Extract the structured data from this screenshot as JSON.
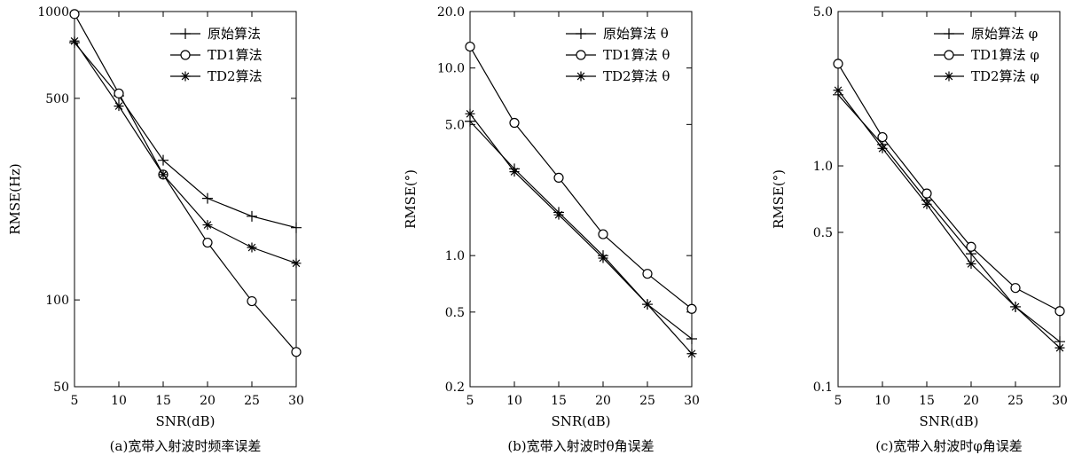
{
  "chart_data": [
    {
      "type": "line",
      "caption": "(a)宽带入射波时频率误差",
      "xlabel": "SNR(dB)",
      "ylabel": "RMSE(Hz)",
      "yscale": "log",
      "xlim": [
        5,
        30
      ],
      "ylim": [
        50,
        1000
      ],
      "xticks": [
        5,
        10,
        15,
        20,
        25,
        30
      ],
      "xtick_labels": [
        "5",
        "10",
        "15",
        "20",
        "25",
        "30"
      ],
      "yticks": [
        50,
        100,
        500,
        1000
      ],
      "ytick_labels": [
        "50",
        "100",
        "500",
        "1000"
      ],
      "legend_position": "top-right",
      "grid": false,
      "x": [
        5,
        10,
        15,
        20,
        25,
        30
      ],
      "series": [
        {
          "name": "原始算法",
          "marker": "plus",
          "values": [
            780,
            510,
            305,
            225,
            195,
            178
          ]
        },
        {
          "name": "TD1算法",
          "marker": "circle",
          "values": [
            980,
            520,
            272,
            158,
            99,
            66
          ]
        },
        {
          "name": "TD2算法",
          "marker": "star",
          "values": [
            790,
            470,
            272,
            182,
            152,
            134
          ]
        }
      ]
    },
    {
      "type": "line",
      "caption": "(b)宽带入射波时θ角误差",
      "xlabel": "SNR(dB)",
      "ylabel": "RMSE(°)",
      "yscale": "log",
      "xlim": [
        5,
        30
      ],
      "ylim": [
        0.2,
        20
      ],
      "xticks": [
        5,
        10,
        15,
        20,
        25,
        30
      ],
      "xtick_labels": [
        "5",
        "10",
        "15",
        "20",
        "25",
        "30"
      ],
      "yticks": [
        0.2,
        0.5,
        1,
        5,
        10,
        20
      ],
      "ytick_labels": [
        "0.2",
        "0.5",
        "1.0",
        "5.0",
        "10.0",
        "20.0"
      ],
      "legend_position": "top-right",
      "grid": false,
      "x": [
        5,
        10,
        15,
        20,
        25,
        30
      ],
      "series": [
        {
          "name": "原始算法 θ",
          "marker": "plus",
          "values": [
            5.2,
            2.9,
            1.7,
            1.0,
            0.55,
            0.36
          ]
        },
        {
          "name": "TD1算法 θ",
          "marker": "circle",
          "values": [
            13,
            5.1,
            2.6,
            1.3,
            0.8,
            0.52
          ]
        },
        {
          "name": "TD2算法 θ",
          "marker": "star",
          "values": [
            5.7,
            2.8,
            1.65,
            0.97,
            0.55,
            0.3
          ]
        }
      ]
    },
    {
      "type": "line",
      "caption": "(c)宽带入射波时φ角误差",
      "xlabel": "SNR(dB)",
      "ylabel": "RMSE(°)",
      "yscale": "log",
      "xlim": [
        5,
        30
      ],
      "ylim": [
        0.1,
        5
      ],
      "xticks": [
        5,
        10,
        15,
        20,
        25,
        30
      ],
      "xtick_labels": [
        "5",
        "10",
        "15",
        "20",
        "25",
        "30"
      ],
      "yticks": [
        0.1,
        0.5,
        1,
        5
      ],
      "ytick_labels": [
        "0.1",
        "0.5",
        "1.0",
        "5.0"
      ],
      "legend_position": "top-right",
      "grid": false,
      "x": [
        5,
        10,
        15,
        20,
        25,
        30
      ],
      "series": [
        {
          "name": "原始算法 φ",
          "marker": "plus",
          "values": [
            2.1,
            1.25,
            0.7,
            0.4,
            0.23,
            0.16
          ]
        },
        {
          "name": "TD1算法 φ",
          "marker": "circle",
          "values": [
            2.9,
            1.35,
            0.75,
            0.43,
            0.28,
            0.22
          ]
        },
        {
          "name": "TD2算法 φ",
          "marker": "star",
          "values": [
            2.2,
            1.2,
            0.67,
            0.36,
            0.23,
            0.15
          ]
        }
      ]
    }
  ]
}
